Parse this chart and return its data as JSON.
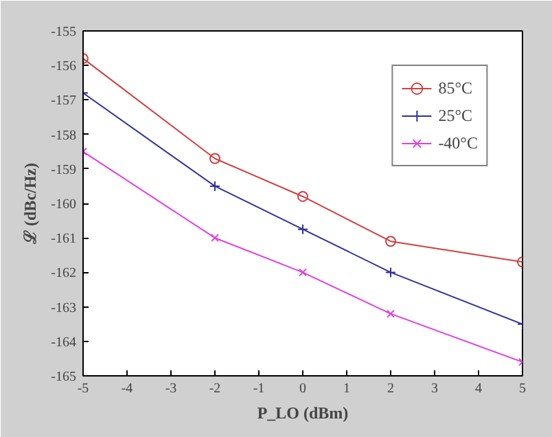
{
  "chart_data": {
    "type": "line",
    "xlabel": "P_LO (dBm)",
    "ylabel": "ℒ (dBc/Hz)",
    "x": [
      -5,
      -2,
      0,
      2,
      5
    ],
    "series": [
      {
        "name": "85°C",
        "color": "#d04040",
        "marker": "circle",
        "values": [
          -155.8,
          -158.7,
          -159.8,
          -161.1,
          -161.7
        ]
      },
      {
        "name": "25°C",
        "color": "#3030a0",
        "marker": "cross",
        "values": [
          -156.8,
          -159.5,
          -160.75,
          -162.0,
          -163.5
        ]
      },
      {
        "name": "-40°C",
        "color": "#e040e0",
        "marker": "x",
        "values": [
          -158.5,
          -161.0,
          -162.0,
          -163.2,
          -164.6
        ]
      }
    ],
    "xlim": [
      -5,
      5
    ],
    "xticks": [
      -5,
      -4,
      -3,
      -2,
      -1,
      0,
      1,
      2,
      3,
      4,
      5
    ],
    "ylim": [
      -165,
      -155
    ],
    "yticks": [
      -165,
      -164,
      -163,
      -162,
      -161,
      -160,
      -159,
      -158,
      -157,
      -156,
      -155
    ],
    "grid": false,
    "legend": "top right",
    "line_style": "solid"
  }
}
